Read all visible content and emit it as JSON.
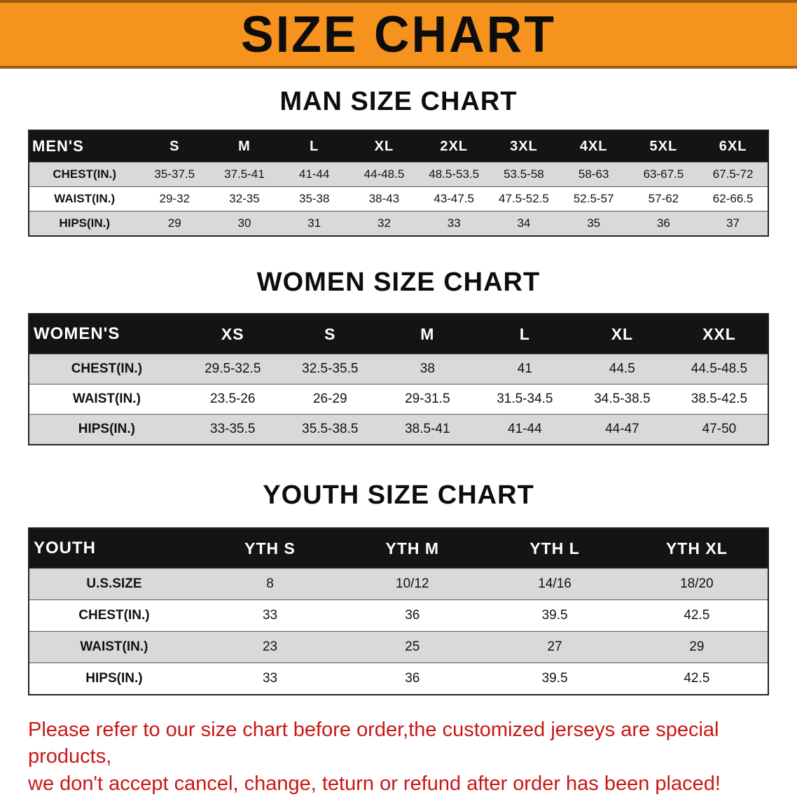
{
  "banner": {
    "title": "SIZE CHART"
  },
  "sections": [
    {
      "heading": "MAN SIZE CHART",
      "table": {
        "header": [
          "MEN'S",
          "S",
          "M",
          "L",
          "XL",
          "2XL",
          "3XL",
          "4XL",
          "5XL",
          "6XL"
        ],
        "rows": [
          [
            "CHEST(IN.)",
            "35-37.5",
            "37.5-41",
            "41-44",
            "44-48.5",
            "48.5-53.5",
            "53.5-58",
            "58-63",
            "63-67.5",
            "67.5-72"
          ],
          [
            "WAIST(IN.)",
            "29-32",
            "32-35",
            "35-38",
            "38-43",
            "43-47.5",
            "47.5-52.5",
            "52.5-57",
            "57-62",
            "62-66.5"
          ],
          [
            "HIPS(IN.)",
            "29",
            "30",
            "31",
            "32",
            "33",
            "34",
            "35",
            "36",
            "37"
          ]
        ]
      }
    },
    {
      "heading": "WOMEN SIZE CHART",
      "table": {
        "header": [
          "WOMEN'S",
          "XS",
          "S",
          "M",
          "L",
          "XL",
          "XXL"
        ],
        "rows": [
          [
            "CHEST(IN.)",
            "29.5-32.5",
            "32.5-35.5",
            "38",
            "41",
            "44.5",
            "44.5-48.5"
          ],
          [
            "WAIST(IN.)",
            "23.5-26",
            "26-29",
            "29-31.5",
            "31.5-34.5",
            "34.5-38.5",
            "38.5-42.5"
          ],
          [
            "HIPS(IN.)",
            "33-35.5",
            "35.5-38.5",
            "38.5-41",
            "41-44",
            "44-47",
            "47-50"
          ]
        ]
      }
    },
    {
      "heading": "YOUTH SIZE CHART",
      "table": {
        "header": [
          "YOUTH",
          "YTH S",
          "YTH M",
          "YTH L",
          "YTH XL"
        ],
        "rows": [
          [
            "U.S.SIZE",
            "8",
            "10/12",
            "14/16",
            "18/20"
          ],
          [
            "CHEST(IN.)",
            "33",
            "36",
            "39.5",
            "42.5"
          ],
          [
            "WAIST(IN.)",
            "23",
            "25",
            "27",
            "29"
          ],
          [
            "HIPS(IN.)",
            "33",
            "36",
            "39.5",
            "42.5"
          ]
        ]
      }
    }
  ],
  "footer": {
    "line1": "Please refer to our size chart before order,the customized jerseys are special products,",
    "line2": "we don't accept cancel, change, teturn or refund after order has been placed!"
  },
  "colors": {
    "banner_orange": "#f6921e",
    "banner_edge": "#9a5d12",
    "table_header_black": "#141414",
    "row_stripe_gray": "#d9d9d9",
    "disclaimer_red": "#cb1616"
  }
}
